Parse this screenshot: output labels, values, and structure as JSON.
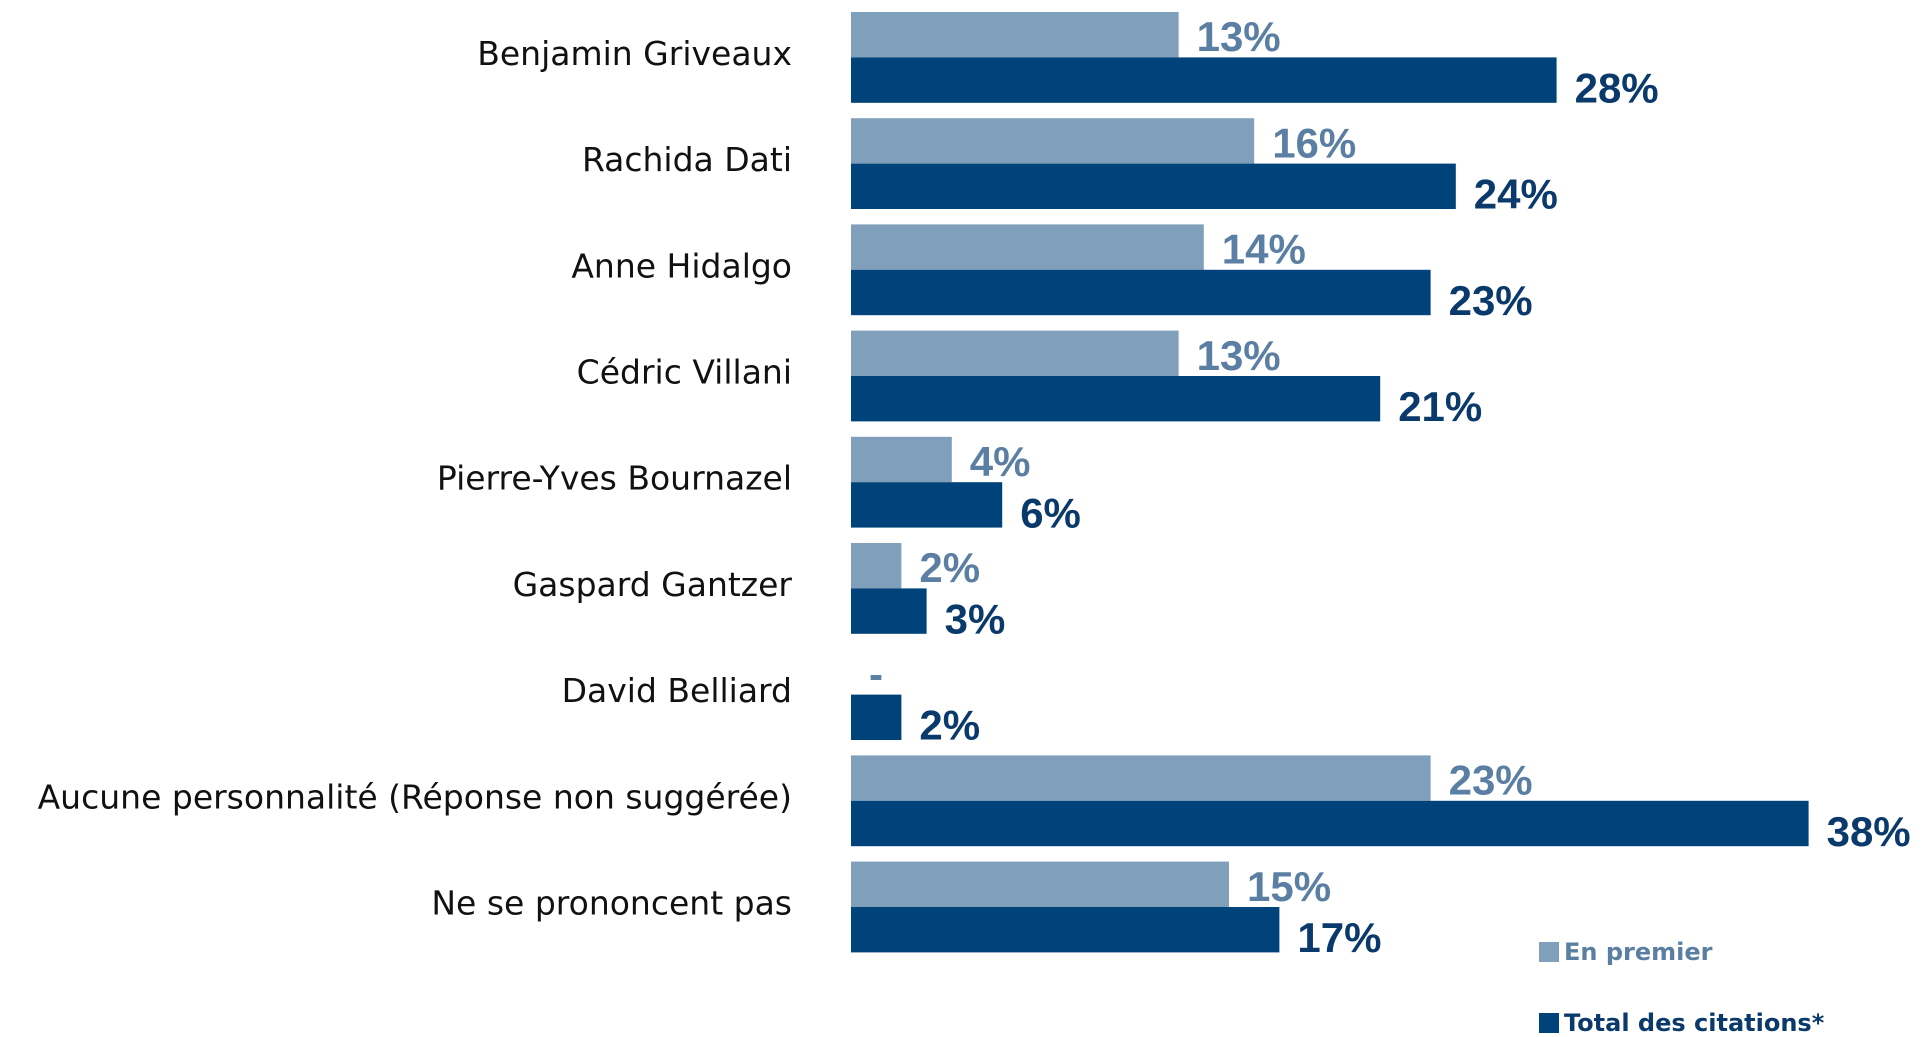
{
  "chart_data": {
    "type": "bar",
    "orientation": "horizontal",
    "categories": [
      "Benjamin Griveaux",
      "Rachida Dati",
      "Anne Hidalgo",
      "Cédric Villani",
      "Pierre-Yves Bournazel",
      "Gaspard Gantzer",
      "David Belliard",
      "Aucune personnalité (Réponse non suggérée)",
      "Ne se prononcent pas"
    ],
    "series": [
      {
        "name": "En premier",
        "color": "#7f9fbb",
        "values": [
          13,
          16,
          14,
          13,
          4,
          2,
          null,
          23,
          15
        ],
        "value_labels": [
          "13%",
          "16%",
          "14%",
          "13%",
          "4%",
          "2%",
          "-",
          "23%",
          "15%"
        ],
        "label_color": "#5b7fa3"
      },
      {
        "name": "Total des citations*",
        "color": "#00427a",
        "values": [
          28,
          24,
          23,
          21,
          6,
          3,
          2,
          38,
          17
        ],
        "value_labels": [
          "28%",
          "24%",
          "23%",
          "21%",
          "6%",
          "3%",
          "2%",
          "38%",
          "17%"
        ],
        "label_color": "#0a3a6b"
      }
    ],
    "xlim": [
      0,
      40
    ],
    "legend": "lower right"
  }
}
